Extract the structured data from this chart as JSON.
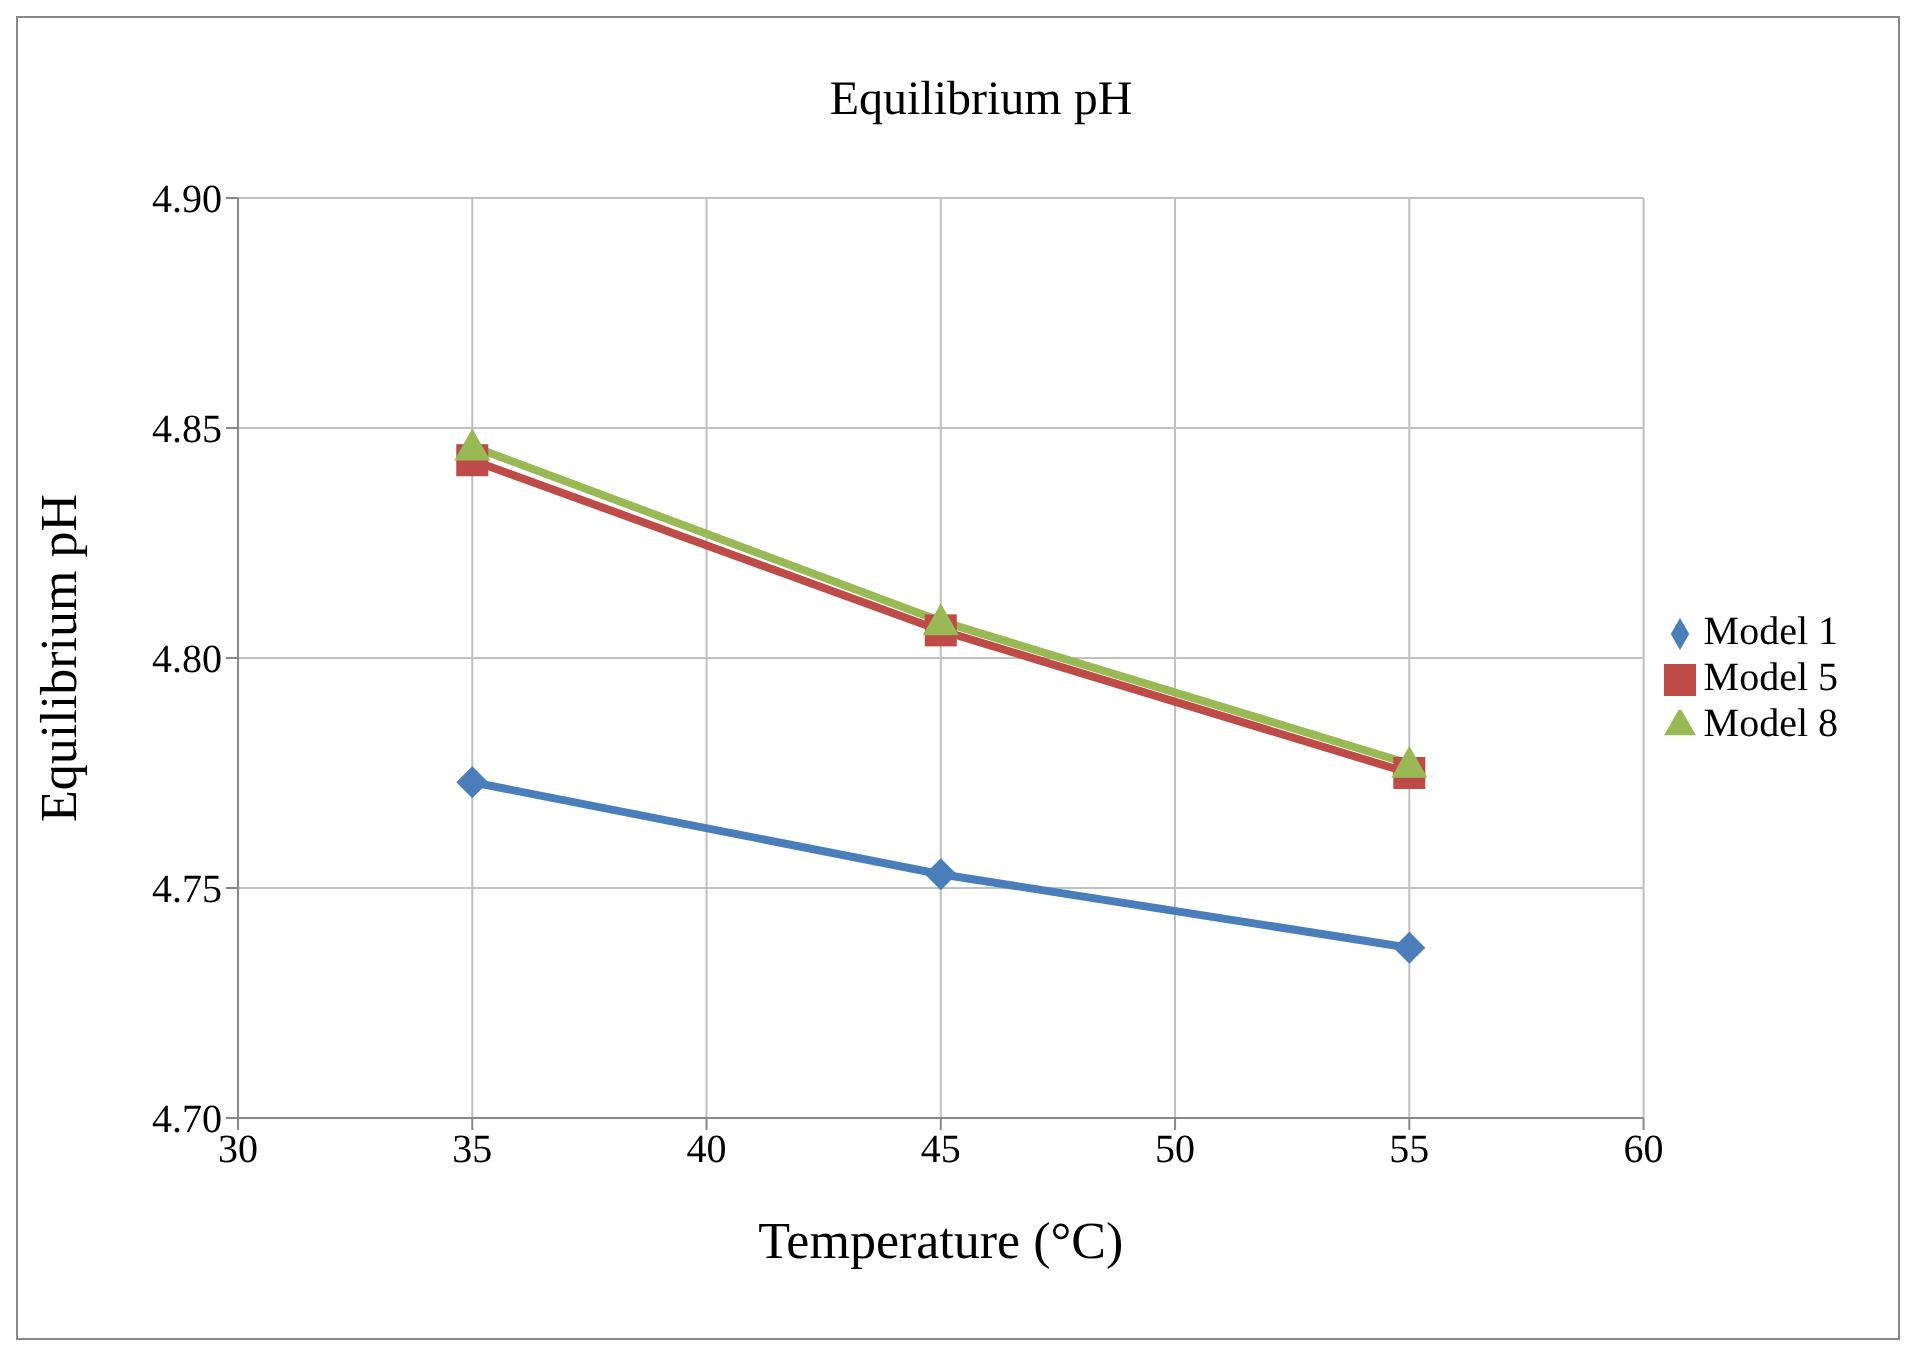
{
  "chart_data": {
    "type": "line",
    "title": "Equilibrium pH",
    "xlabel": "Temperature (°C)",
    "ylabel": "Equilibrium pH",
    "x": [
      35,
      45,
      55
    ],
    "series": [
      {
        "name": "Model 1",
        "color": "#4a7ebb",
        "values": [
          4.773,
          4.753,
          4.737
        ],
        "marker": "diamond"
      },
      {
        "name": "Model 5",
        "color": "#be4b48",
        "values": [
          4.843,
          4.806,
          4.775
        ],
        "marker": "square"
      },
      {
        "name": "Model 8",
        "color": "#98b954",
        "values": [
          4.846,
          4.808,
          4.777
        ],
        "marker": "triangle"
      }
    ],
    "xlim": [
      30,
      60
    ],
    "xticks": [
      30,
      35,
      40,
      45,
      50,
      55,
      60
    ],
    "ylim": [
      4.7,
      4.9
    ],
    "yticks": [
      {
        "value": 4.7,
        "label": "4.70"
      },
      4.75,
      {
        "value": 4.8,
        "label": "4.80"
      },
      4.85,
      {
        "value": 4.9,
        "label": "4.90"
      }
    ],
    "grid": true,
    "legend": "right",
    "line_style": "solid"
  }
}
